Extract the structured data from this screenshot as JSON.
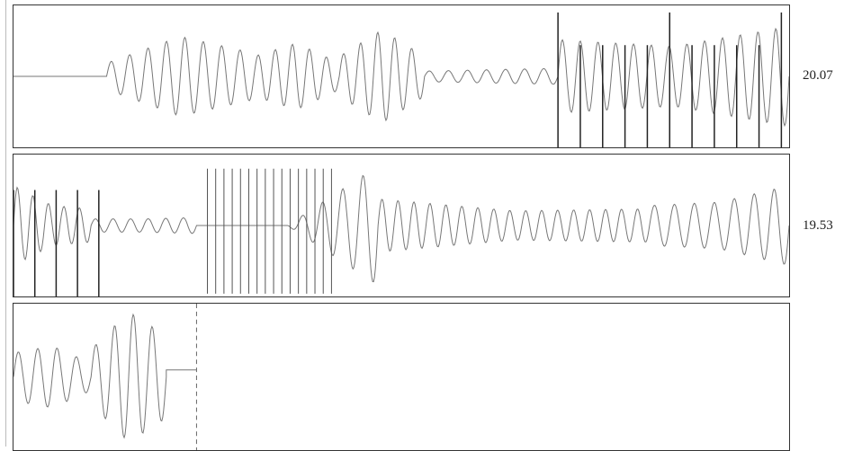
{
  "strips": [
    {
      "label": "20.07",
      "segments": [
        {
          "type": "flat",
          "x0": 0.0,
          "x1": 0.12,
          "level": 0.0
        },
        {
          "type": "wave",
          "x0": 0.12,
          "x1": 0.31,
          "amp": [
            0.2,
            0.6,
            0.35
          ],
          "cycles": 8
        },
        {
          "type": "wave",
          "x0": 0.31,
          "x1": 0.42,
          "amp": [
            0.3,
            0.5,
            0.2
          ],
          "cycles": 5
        },
        {
          "type": "wave",
          "x0": 0.42,
          "x1": 0.53,
          "amp": [
            0.3,
            0.7,
            0.3
          ],
          "cycles": 5
        },
        {
          "type": "wave",
          "x0": 0.53,
          "x1": 0.702,
          "amp": [
            0.08,
            0.1,
            0.12
          ],
          "cycles": 7
        },
        {
          "type": "wave",
          "x0": 0.702,
          "x1": 1.0,
          "amp": [
            0.55,
            0.45,
            0.75
          ],
          "cycles": 13
        }
      ],
      "spikes": {
        "x0": 0.702,
        "x1": 0.99,
        "count": 11,
        "tall": [
          0.0,
          0.95
        ],
        "short": [
          0.0,
          0.72
        ]
      }
    },
    {
      "label": "19.53",
      "segments": [
        {
          "type": "wave",
          "x0": 0.0,
          "x1": 0.1,
          "amp": [
            0.6,
            0.3,
            0.25
          ],
          "cycles": 5
        },
        {
          "type": "wave",
          "x0": 0.1,
          "x1": 0.236,
          "amp": [
            0.1,
            0.1,
            0.12
          ],
          "cycles": 6
        },
        {
          "type": "wave",
          "x0": 0.236,
          "x1": 0.47,
          "amp": [
            0.0,
            0.0,
            0.9
          ],
          "cycles": 9
        },
        {
          "type": "wave",
          "x0": 0.47,
          "x1": 0.82,
          "amp": [
            0.4,
            0.22,
            0.25
          ],
          "cycles": 17
        },
        {
          "type": "wave",
          "x0": 0.82,
          "x1": 1.0,
          "amp": [
            0.3,
            0.35,
            0.6
          ],
          "cycles": 7
        }
      ],
      "spikes": {
        "x0": 0.0,
        "x1": 0.11,
        "count": 5,
        "tall": [
          0.0,
          0.75
        ],
        "short": [
          0.0,
          0.75
        ]
      },
      "bars": {
        "x0": 0.25,
        "x1": 0.41,
        "count": 16
      }
    },
    {
      "label": "",
      "segments": [
        {
          "type": "wave",
          "x0": 0.0,
          "x1": 0.1,
          "amp": [
            0.35,
            0.45,
            0.2
          ],
          "cycles": 4
        },
        {
          "type": "wave",
          "x0": 0.1,
          "x1": 0.197,
          "amp": [
            0.4,
            0.95,
            0.6
          ],
          "cycles": 4
        },
        {
          "type": "flat",
          "x0": 0.197,
          "x1": 0.236,
          "level": 0.1
        }
      ],
      "dashed_x": 0.236
    }
  ]
}
